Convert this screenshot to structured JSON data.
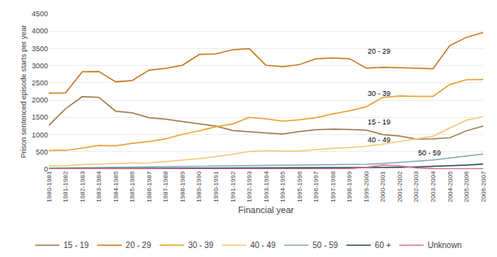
{
  "chart_data": {
    "type": "line",
    "xlabel": "Financial year",
    "ylabel": "Prison sentenced episode starts per year",
    "categories": [
      "1980-1981",
      "1981-1982",
      "1982-1983",
      "1983-1984",
      "1984-1985",
      "1985-1986",
      "1986-1987",
      "1987-1988",
      "1988-1989",
      "1989-1990",
      "1990-1991",
      "1991-1992",
      "1992-1993",
      "1993-1994",
      "1994-1995",
      "1995-1996",
      "1996-1997",
      "1997-1998",
      "1998-1999",
      "1999-2000",
      "2000-2001",
      "2001-2002",
      "2002-2003",
      "2003-2004",
      "2004-2005",
      "2005-2006",
      "2006-2007"
    ],
    "series": [
      {
        "name": "15 - 19",
        "color": "#9B7B4A",
        "values": [
          1270,
          1750,
          2100,
          2080,
          1680,
          1630,
          1490,
          1450,
          1380,
          1310,
          1250,
          1120,
          1080,
          1050,
          1020,
          1090,
          1140,
          1160,
          1150,
          1130,
          1000,
          960,
          870,
          880,
          910,
          1110,
          1250
        ]
      },
      {
        "name": "20 - 29",
        "color": "#C87820",
        "values": [
          2200,
          2210,
          2820,
          2830,
          2530,
          2570,
          2870,
          2920,
          3010,
          3320,
          3340,
          3460,
          3490,
          3010,
          2970,
          3030,
          3200,
          3220,
          3200,
          2930,
          2950,
          2940,
          2930,
          2910,
          3580,
          3820,
          3960
        ]
      },
      {
        "name": "30 - 39",
        "color": "#E8A030",
        "values": [
          540,
          545,
          610,
          690,
          680,
          750,
          800,
          880,
          1010,
          1110,
          1230,
          1310,
          1500,
          1460,
          1390,
          1430,
          1490,
          1600,
          1690,
          1810,
          2080,
          2120,
          2110,
          2110,
          2450,
          2590,
          2600
        ]
      },
      {
        "name": "40 - 49",
        "color": "#F5C87A",
        "values": [
          95,
          100,
          130,
          155,
          165,
          175,
          185,
          215,
          255,
          305,
          365,
          430,
          515,
          535,
          525,
          525,
          565,
          605,
          625,
          665,
          725,
          805,
          885,
          955,
          1190,
          1420,
          1520
        ]
      },
      {
        "name": "50 - 59",
        "color": "#8AA8B8",
        "values": [
          30,
          35,
          42,
          47,
          52,
          57,
          62,
          67,
          73,
          78,
          83,
          93,
          103,
          113,
          113,
          113,
          113,
          123,
          133,
          143,
          163,
          193,
          225,
          265,
          325,
          385,
          435
        ]
      },
      {
        "name": "60 +",
        "color": "#2C4B5A",
        "values": [
          10,
          12,
          14,
          15,
          16,
          17,
          18,
          18,
          20,
          22,
          24,
          26,
          28,
          30,
          30,
          32,
          35,
          38,
          40,
          42,
          48,
          55,
          65,
          80,
          100,
          120,
          145
        ]
      },
      {
        "name": "Unknown",
        "color": "#E07090",
        "values": [
          5,
          6,
          7,
          8,
          8,
          8,
          8,
          9,
          10,
          10,
          10,
          10,
          10,
          10,
          10,
          10,
          10,
          10,
          10,
          55,
          120,
          95,
          35,
          15,
          10,
          10,
          10
        ]
      }
    ],
    "annotations": [
      {
        "text": "20 - 29",
        "x": "1999-2000",
        "y": 3250
      },
      {
        "text": "30 - 39",
        "x": "1999-2000",
        "y": 2020
      },
      {
        "text": "15 - 19",
        "x": "1999-2000",
        "y": 1190
      },
      {
        "text": "40 - 49",
        "x": "1999-2000",
        "y": 680
      },
      {
        "text": "50 - 59",
        "x": "2002-2003",
        "y": 310
      }
    ],
    "ylim": [
      0,
      4500
    ],
    "yticks": [
      0,
      500,
      1000,
      1500,
      2000,
      2500,
      3000,
      3500,
      4000,
      4500
    ],
    "grid": true,
    "legend": "bottom"
  }
}
